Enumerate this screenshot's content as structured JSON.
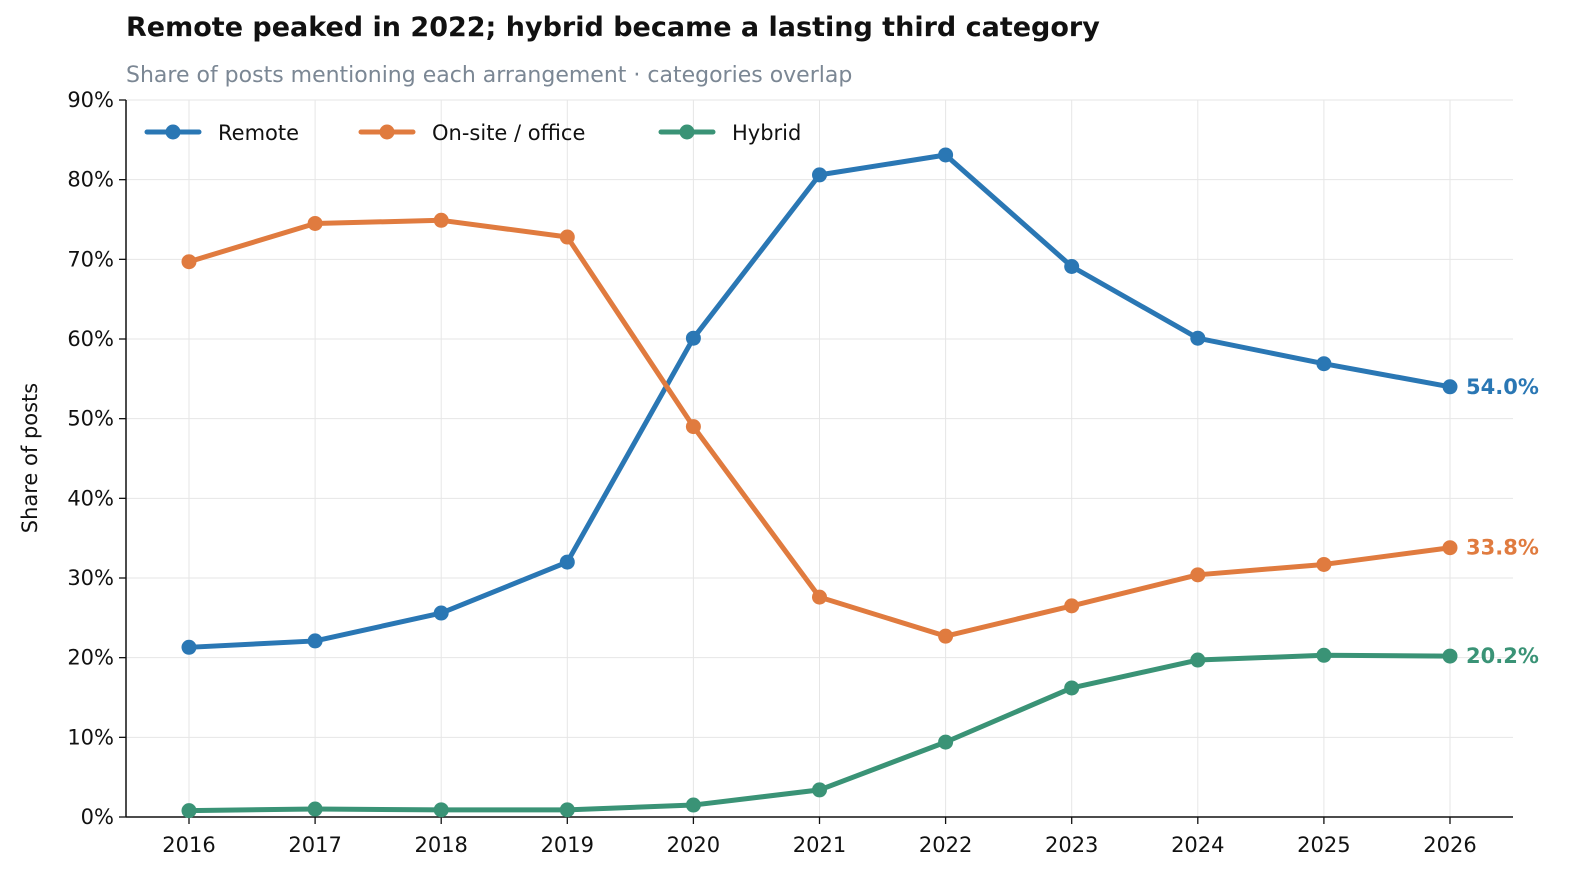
{
  "chart_data": {
    "type": "line",
    "title": "Remote peaked in 2022; hybrid became a lasting third category",
    "subtitle": "Share of posts mentioning each arrangement · categories overlap",
    "xlabel": "",
    "ylabel": "Share of posts",
    "x": [
      2016,
      2017,
      2018,
      2019,
      2020,
      2021,
      2022,
      2023,
      2024,
      2025,
      2026
    ],
    "x_tick_labels": [
      "2016",
      "2017",
      "2018",
      "2019",
      "2020",
      "2021",
      "2022",
      "2023",
      "2024",
      "2025",
      "2026"
    ],
    "ylim": [
      0,
      90
    ],
    "y_ticks": [
      0,
      10,
      20,
      30,
      40,
      50,
      60,
      70,
      80,
      90
    ],
    "y_tick_labels": [
      "0%",
      "10%",
      "20%",
      "30%",
      "40%",
      "50%",
      "60%",
      "70%",
      "80%",
      "90%"
    ],
    "grid": true,
    "legend_position": "top-left",
    "series": [
      {
        "name": "Remote",
        "color": "#2a77b4",
        "values": [
          21.3,
          22.1,
          25.6,
          32.0,
          60.1,
          80.6,
          83.1,
          69.1,
          60.1,
          56.9,
          54.0
        ],
        "end_label": "54.0%"
      },
      {
        "name": "On-site / office",
        "color": "#e07b3f",
        "values": [
          69.7,
          74.5,
          74.9,
          72.8,
          49.0,
          27.6,
          22.7,
          26.5,
          30.4,
          31.7,
          33.8
        ],
        "end_label": "33.8%"
      },
      {
        "name": "Hybrid",
        "color": "#3a9376",
        "values": [
          0.8,
          1.0,
          0.9,
          0.9,
          1.5,
          3.4,
          9.4,
          16.2,
          19.7,
          20.3,
          20.2
        ],
        "end_label": "20.2%"
      }
    ]
  }
}
